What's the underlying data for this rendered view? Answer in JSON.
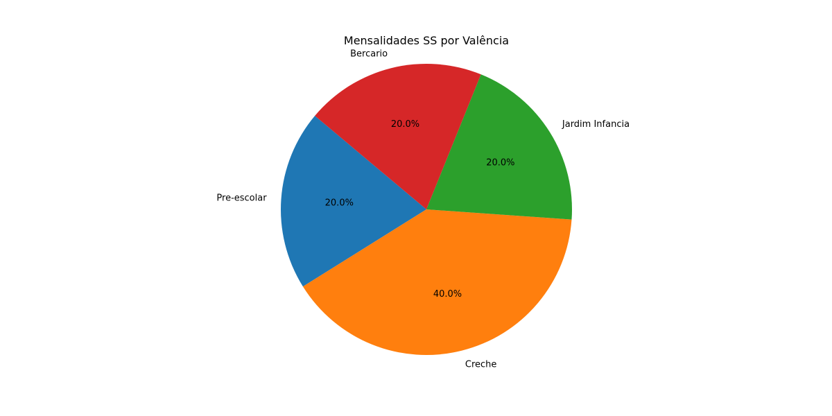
{
  "chart_data": {
    "type": "pie",
    "title": "Mensalidades SS por Valência",
    "categories": [
      "Pre-escolar",
      "Creche",
      "Jardim Infancia",
      "Bercario"
    ],
    "values": [
      20.0,
      40.0,
      20.0,
      20.0
    ],
    "percent_labels": [
      "20.0%",
      "40.0%",
      "20.0%",
      "20.0%"
    ],
    "colors": [
      "#1f77b4",
      "#ff7f0e",
      "#2ca02c",
      "#d62728"
    ],
    "start_angle_deg": 140,
    "direction": "counterclockwise",
    "legend": "none"
  }
}
